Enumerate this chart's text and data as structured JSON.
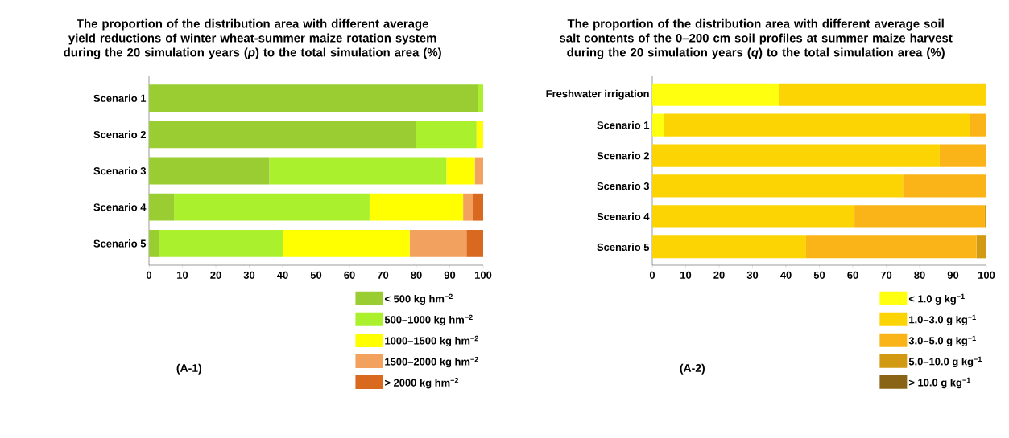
{
  "chart_data": [
    {
      "type": "bar",
      "orientation": "horizontal",
      "stacked": true,
      "title": "The proportion of the distribution area with different average yield reductions of winter wheat-summer maize rotation system during the 20 simulation years (*p*) to the total simulation area (%)",
      "categories": [
        "Scenario 1",
        "Scenario 2",
        "Scenario 3",
        "Scenario 4",
        "Scenario 5"
      ],
      "series": [
        {
          "name": "< 500 kg hm$^{−2}$",
          "color": "#9acd32",
          "values": [
            98.5,
            80,
            36,
            7.5,
            3
          ]
        },
        {
          "name": "500–1000 kg hm$^{−2}$",
          "color": "#aaf02c",
          "values": [
            1.5,
            18,
            53,
            58.5,
            37
          ]
        },
        {
          "name": "1000–1500 kg hm$^{−2}$",
          "color": "#ffff00",
          "values": [
            0,
            2,
            8.5,
            28,
            38
          ]
        },
        {
          "name": "1500–2000 kg hm$^{−2}$",
          "color": "#f2a25e",
          "values": [
            0,
            0,
            2.5,
            3,
            17
          ]
        },
        {
          "name": "> 2000 kg hm$^{−2}$",
          "color": "#d8691f",
          "values": [
            0,
            0,
            0,
            3,
            5
          ]
        }
      ],
      "xlim": [
        0,
        100
      ],
      "xticks": [
        0,
        10,
        20,
        30,
        40,
        50,
        60,
        70,
        80,
        90,
        100
      ],
      "legend": "bottom right",
      "annotations": [
        "(A-1)"
      ]
    },
    {
      "type": "bar",
      "orientation": "horizontal",
      "stacked": true,
      "title": "The proportion of the distribution area with different average soil salt contents of the 0–200 cm soil profiles at summer maize harvest during the 20 simulation years (*q*) to the total simulation area (%)",
      "categories": [
        "Freshwater irrigation",
        "Scenario 1",
        "Scenario 2",
        "Scenario 3",
        "Scenario 4",
        "Scenario 5"
      ],
      "series": [
        {
          "name": "< 1.0 g kg$^{−1}$",
          "color": "#ffff10",
          "values": [
            38,
            3.5,
            0,
            0,
            0,
            0
          ]
        },
        {
          "name": "1.0–3.0 g kg$^{−1}$",
          "color": "#fcd403",
          "values": [
            62,
            91.5,
            86,
            75,
            60.5,
            46
          ]
        },
        {
          "name": "3.0–5.0 g kg$^{−1}$",
          "color": "#fbb418",
          "values": [
            0,
            5,
            14,
            25,
            39,
            51
          ]
        },
        {
          "name": "5.0–10.0 g kg$^{−1}$",
          "color": "#d19a12",
          "values": [
            0,
            0,
            0,
            0,
            0.5,
            3
          ]
        },
        {
          "name": "> 10.0 g kg$^{−1}$",
          "color": "#8a6416",
          "values": [
            0,
            0,
            0,
            0,
            0,
            0
          ]
        }
      ],
      "xlim": [
        0,
        100
      ],
      "xticks": [
        0,
        10,
        20,
        30,
        40,
        50,
        60,
        70,
        80,
        90,
        100
      ],
      "legend": "bottom right",
      "annotations": [
        "(A-2)"
      ]
    }
  ]
}
